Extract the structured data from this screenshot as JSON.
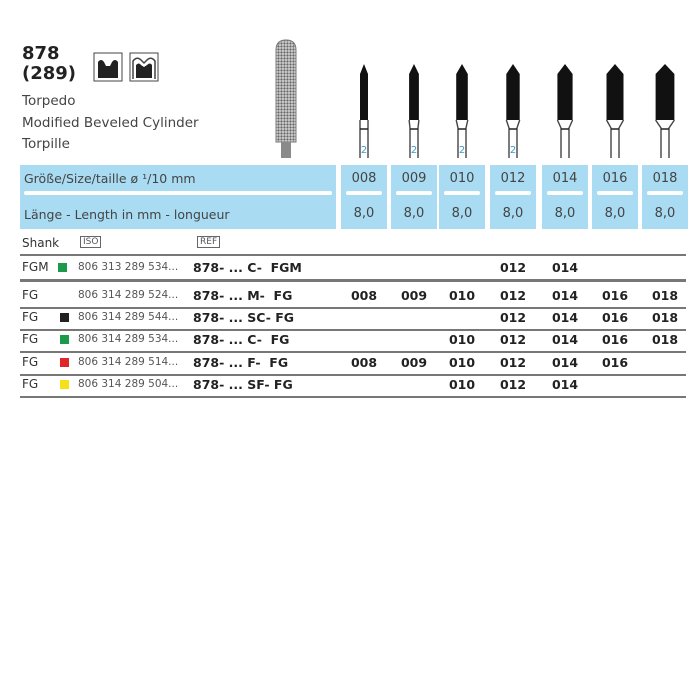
{
  "product": {
    "number": "878",
    "iso_shape": "(289)",
    "names": [
      "Torpedo",
      "Modified Beveled Cylinder",
      "Torpille"
    ],
    "icons": [
      "crown-preparation-icon",
      "crown-outline-icon"
    ]
  },
  "header": {
    "size_label": "Größe/Size/taille  ø ¹/10 mm",
    "length_label": "Länge - Length in mm - longueur"
  },
  "sizes": [
    "008",
    "009",
    "010",
    "012",
    "014",
    "016",
    "018"
  ],
  "lengths": [
    "8,0",
    "8,0",
    "8,0",
    "8,0",
    "8,0",
    "8,0",
    "8,0"
  ],
  "bur_marks": [
    "2",
    "2",
    "2",
    "2",
    "",
    "",
    ""
  ],
  "table": {
    "shank_label": "Shank",
    "iso_label": "ISO",
    "ref_label": "REF",
    "rows": [
      {
        "shank": "FGM",
        "color": "#1a9a4a",
        "iso": "806 313 289 534...",
        "ref": "878- ... C-  FGM",
        "sizes": [
          "",
          "",
          "",
          "012",
          "014",
          "",
          ""
        ]
      },
      {
        "shank": "FG",
        "color": "",
        "iso": "806 314 289 524...",
        "ref": "878- ... M-  FG",
        "sizes": [
          "008",
          "009",
          "010",
          "012",
          "014",
          "016",
          "018"
        ]
      },
      {
        "shank": "FG",
        "color": "#222222",
        "iso": "806 314 289 544...",
        "ref": "878- ... SC- FG",
        "sizes": [
          "",
          "",
          "",
          "012",
          "014",
          "016",
          "018"
        ]
      },
      {
        "shank": "FG",
        "color": "#1a9a4a",
        "iso": "806 314 289 534...",
        "ref": "878- ... C-  FG",
        "sizes": [
          "",
          "",
          "010",
          "012",
          "014",
          "016",
          "018"
        ]
      },
      {
        "shank": "FG",
        "color": "#e0262b",
        "iso": "806 314 289 514...",
        "ref": "878- ... F-  FG",
        "sizes": [
          "008",
          "009",
          "010",
          "012",
          "014",
          "016",
          ""
        ]
      },
      {
        "shank": "FG",
        "color": "#f5e01a",
        "iso": "806 314 289 504...",
        "ref": "878- ... SF- FG",
        "sizes": [
          "",
          "",
          "010",
          "012",
          "014",
          "",
          ""
        ]
      }
    ]
  },
  "colors": {
    "header_blue": "#a9dcf3",
    "mark_blue": "#3a9bc8"
  }
}
